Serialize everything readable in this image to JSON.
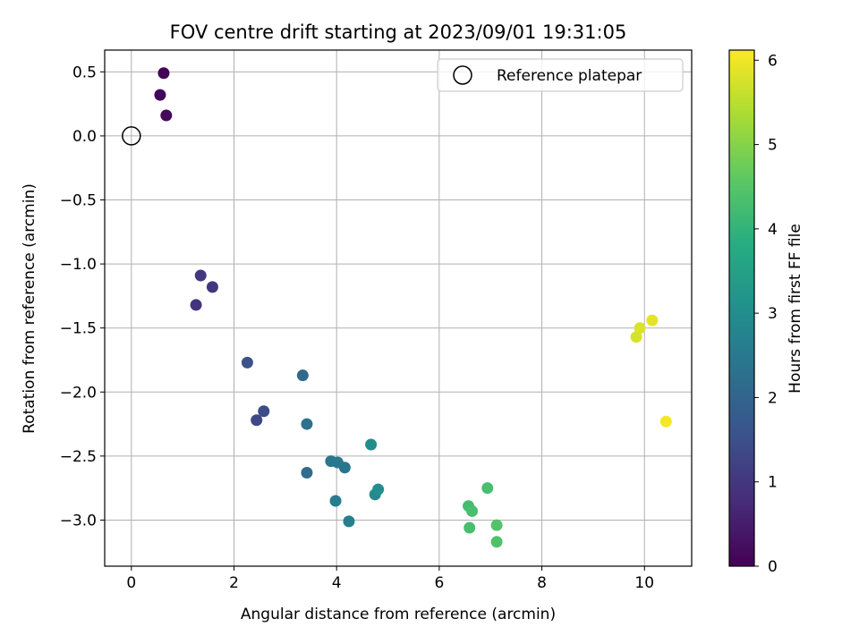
{
  "chart_data": {
    "type": "scatter",
    "title": "FOV centre drift starting at 2023/09/01 19:31:05",
    "xlabel": "Angular distance from reference (arcmin)",
    "ylabel": "Rotation from reference (arcmin)",
    "xlim": [
      -0.52,
      10.92
    ],
    "ylim": [
      -3.36,
      0.67
    ],
    "xticks": [
      0,
      2,
      4,
      6,
      8,
      10
    ],
    "yticks": [
      0.5,
      0.0,
      -0.5,
      -1.0,
      -1.5,
      -2.0,
      -2.5,
      -3.0
    ],
    "xtick_labels": [
      "0",
      "2",
      "4",
      "6",
      "8",
      "10"
    ],
    "ytick_labels": [
      "0.5",
      "0.0",
      "−0.5",
      "−1.0",
      "−1.5",
      "−2.0",
      "−2.5",
      "−3.0"
    ],
    "grid": true,
    "legend": {
      "placement": "top-right",
      "entries": [
        "Reference platepar"
      ]
    },
    "colorbar": {
      "label": "Hours from first FF file",
      "colormap": "viridis",
      "range": [
        0,
        6.12
      ],
      "ticks": [
        0,
        1,
        2,
        3,
        4,
        5,
        6
      ],
      "tick_labels": [
        "0",
        "1",
        "2",
        "3",
        "4",
        "5",
        "6"
      ]
    },
    "reference_point": {
      "x": 0,
      "y": 0
    },
    "points": [
      {
        "x": 0.63,
        "y": 0.49,
        "c": 0.05
      },
      {
        "x": 0.56,
        "y": 0.32,
        "c": 0.1
      },
      {
        "x": 0.68,
        "y": 0.16,
        "c": 0.15
      },
      {
        "x": 1.35,
        "y": -1.09,
        "c": 1.0
      },
      {
        "x": 1.58,
        "y": -1.18,
        "c": 0.95
      },
      {
        "x": 1.26,
        "y": -1.32,
        "c": 0.9
      },
      {
        "x": 2.26,
        "y": -1.77,
        "c": 1.55
      },
      {
        "x": 2.58,
        "y": -2.15,
        "c": 1.4
      },
      {
        "x": 2.44,
        "y": -2.22,
        "c": 1.35
      },
      {
        "x": 3.34,
        "y": -1.87,
        "c": 2.1
      },
      {
        "x": 3.42,
        "y": -2.25,
        "c": 2.3
      },
      {
        "x": 3.42,
        "y": -2.63,
        "c": 2.2
      },
      {
        "x": 3.89,
        "y": -2.54,
        "c": 2.45
      },
      {
        "x": 4.02,
        "y": -2.55,
        "c": 2.5
      },
      {
        "x": 4.16,
        "y": -2.59,
        "c": 2.4
      },
      {
        "x": 3.98,
        "y": -2.85,
        "c": 2.6
      },
      {
        "x": 4.24,
        "y": -3.01,
        "c": 2.65
      },
      {
        "x": 4.67,
        "y": -2.41,
        "c": 2.95
      },
      {
        "x": 4.75,
        "y": -2.8,
        "c": 2.9
      },
      {
        "x": 4.81,
        "y": -2.76,
        "c": 3.0
      },
      {
        "x": 6.94,
        "y": -2.75,
        "c": 4.3
      },
      {
        "x": 6.57,
        "y": -2.89,
        "c": 4.25
      },
      {
        "x": 6.64,
        "y": -2.93,
        "c": 4.3
      },
      {
        "x": 6.59,
        "y": -3.06,
        "c": 4.3
      },
      {
        "x": 7.12,
        "y": -3.04,
        "c": 4.45
      },
      {
        "x": 7.12,
        "y": -3.17,
        "c": 4.4
      },
      {
        "x": 9.84,
        "y": -1.57,
        "c": 5.75
      },
      {
        "x": 9.91,
        "y": -1.5,
        "c": 5.8
      },
      {
        "x": 10.15,
        "y": -1.44,
        "c": 5.9
      },
      {
        "x": 10.42,
        "y": -2.23,
        "c": 6.05
      }
    ]
  }
}
